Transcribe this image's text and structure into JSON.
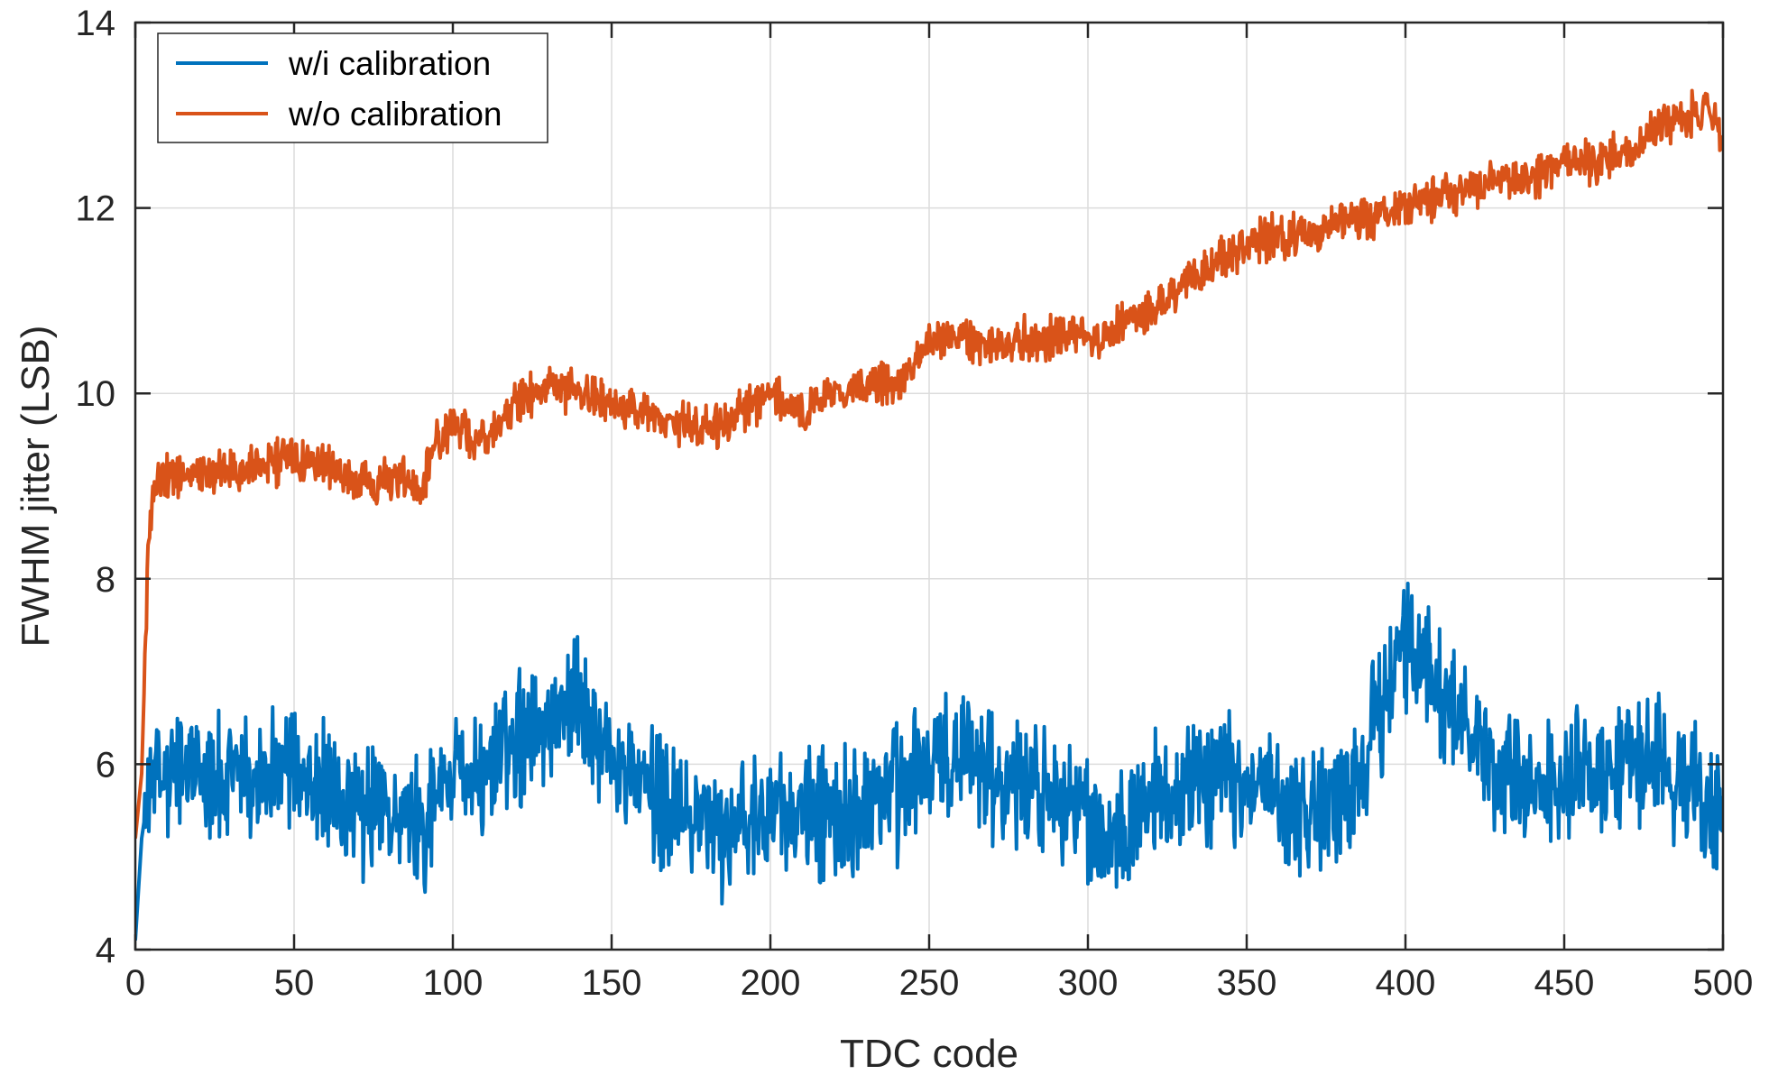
{
  "chart_data": {
    "type": "line",
    "title": "",
    "xlabel": "TDC code",
    "ylabel": "FWHM jitter (LSB)",
    "xlim": [
      0,
      500
    ],
    "ylim": [
      4,
      14
    ],
    "xticks": [
      0,
      50,
      100,
      150,
      200,
      250,
      300,
      350,
      400,
      450,
      500
    ],
    "yticks": [
      4,
      6,
      8,
      10,
      12,
      14
    ],
    "grid": true,
    "legend_position": "top-left",
    "series": [
      {
        "name": "w/i calibration",
        "color": "#0072BD",
        "noise_amplitude": 0.85,
        "anchors": [
          [
            0,
            4.1
          ],
          [
            2,
            5.2
          ],
          [
            5,
            5.9
          ],
          [
            10,
            5.8
          ],
          [
            20,
            5.9
          ],
          [
            30,
            5.8
          ],
          [
            40,
            5.9
          ],
          [
            50,
            5.8
          ],
          [
            60,
            5.7
          ],
          [
            70,
            5.5
          ],
          [
            80,
            5.5
          ],
          [
            90,
            5.4
          ],
          [
            100,
            5.9
          ],
          [
            110,
            5.9
          ],
          [
            120,
            6.3
          ],
          [
            130,
            6.5
          ],
          [
            138,
            6.7
          ],
          [
            145,
            6.2
          ],
          [
            155,
            5.9
          ],
          [
            165,
            5.6
          ],
          [
            175,
            5.5
          ],
          [
            185,
            5.3
          ],
          [
            200,
            5.4
          ],
          [
            210,
            5.4
          ],
          [
            220,
            5.5
          ],
          [
            230,
            5.6
          ],
          [
            240,
            5.7
          ],
          [
            250,
            6.0
          ],
          [
            260,
            6.1
          ],
          [
            270,
            5.9
          ],
          [
            280,
            5.8
          ],
          [
            290,
            5.8
          ],
          [
            300,
            5.4
          ],
          [
            305,
            5.2
          ],
          [
            315,
            5.5
          ],
          [
            330,
            5.8
          ],
          [
            345,
            5.9
          ],
          [
            355,
            5.7
          ],
          [
            365,
            5.5
          ],
          [
            375,
            5.5
          ],
          [
            385,
            5.8
          ],
          [
            395,
            6.9
          ],
          [
            403,
            7.4
          ],
          [
            410,
            6.8
          ],
          [
            420,
            6.4
          ],
          [
            430,
            5.9
          ],
          [
            440,
            5.8
          ],
          [
            450,
            5.9
          ],
          [
            460,
            5.9
          ],
          [
            470,
            6.0
          ],
          [
            480,
            6.0
          ],
          [
            490,
            5.8
          ],
          [
            500,
            5.4
          ]
        ]
      },
      {
        "name": "w/o calibration",
        "color": "#D95319",
        "noise_amplitude": 0.28,
        "anchors": [
          [
            0,
            5.2
          ],
          [
            2,
            5.9
          ],
          [
            4,
            8.2
          ],
          [
            6,
            9.1
          ],
          [
            10,
            9.1
          ],
          [
            20,
            9.1
          ],
          [
            30,
            9.2
          ],
          [
            40,
            9.2
          ],
          [
            50,
            9.3
          ],
          [
            60,
            9.2
          ],
          [
            70,
            9.0
          ],
          [
            80,
            9.1
          ],
          [
            90,
            9.0
          ],
          [
            95,
            9.5
          ],
          [
            100,
            9.6
          ],
          [
            110,
            9.5
          ],
          [
            120,
            9.9
          ],
          [
            130,
            10.1
          ],
          [
            140,
            10.0
          ],
          [
            150,
            9.9
          ],
          [
            160,
            9.8
          ],
          [
            170,
            9.7
          ],
          [
            180,
            9.6
          ],
          [
            190,
            9.8
          ],
          [
            200,
            10.0
          ],
          [
            210,
            9.8
          ],
          [
            220,
            10.0
          ],
          [
            230,
            10.1
          ],
          [
            240,
            10.1
          ],
          [
            250,
            10.6
          ],
          [
            260,
            10.6
          ],
          [
            270,
            10.5
          ],
          [
            280,
            10.6
          ],
          [
            290,
            10.6
          ],
          [
            300,
            10.6
          ],
          [
            310,
            10.7
          ],
          [
            320,
            10.9
          ],
          [
            330,
            11.2
          ],
          [
            340,
            11.4
          ],
          [
            350,
            11.6
          ],
          [
            360,
            11.7
          ],
          [
            370,
            11.7
          ],
          [
            380,
            11.9
          ],
          [
            390,
            11.9
          ],
          [
            400,
            12.0
          ],
          [
            410,
            12.1
          ],
          [
            420,
            12.2
          ],
          [
            430,
            12.3
          ],
          [
            440,
            12.3
          ],
          [
            450,
            12.5
          ],
          [
            460,
            12.5
          ],
          [
            470,
            12.6
          ],
          [
            480,
            12.9
          ],
          [
            490,
            13.0
          ],
          [
            495,
            13.1
          ],
          [
            500,
            12.7
          ]
        ]
      }
    ]
  }
}
